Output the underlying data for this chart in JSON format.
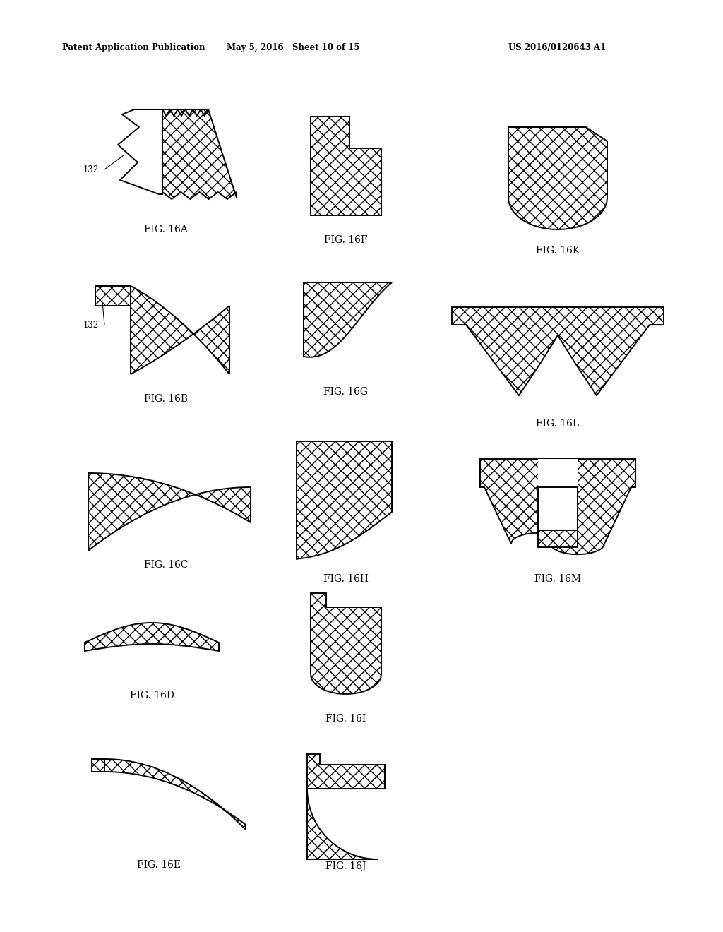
{
  "header_left": "Patent Application Publication",
  "header_mid": "May 5, 2016   Sheet 10 of 15",
  "header_right": "US 2016/0120643 A1",
  "bg_color": "#ffffff"
}
